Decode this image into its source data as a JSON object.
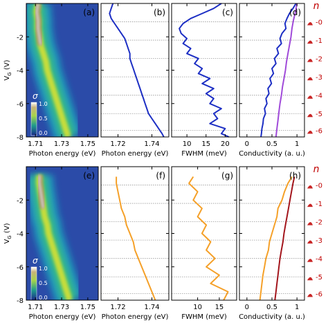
{
  "colors": {
    "blue_curve": "#1d2fc4",
    "purple_curve": "#a04ad9",
    "orange_curve": "#f5a028",
    "darkred_curve": "#a3151c",
    "n_color": "#c00000",
    "dotted_line": "#999999"
  },
  "row_ylabel": "V_G (V)",
  "yticks": [
    "-2",
    "-4",
    "-6",
    "-8"
  ],
  "n_axis_title": "n",
  "n_labels": [
    "-0",
    "-1",
    "-2",
    "-3",
    "-4",
    "-5",
    "-6"
  ],
  "colorbar": {
    "symbol": "σ",
    "ticks": [
      "1.0",
      "0.5",
      "0.0"
    ]
  },
  "chart_data": [
    {
      "type": "heatmap",
      "panel": "(a)",
      "xlabel": "Photon energy (eV)",
      "xticks": [
        1.71,
        1.73,
        1.75
      ],
      "xlim": [
        1.703,
        1.758
      ],
      "ylim": [
        -8,
        0
      ],
      "peak_ridge": {
        "vg": [
          0,
          -0.5,
          -1.0,
          -1.5,
          -2.0,
          -2.5,
          -3.0,
          -3.5,
          -4.0,
          -4.5,
          -5.0,
          -5.5,
          -6.0,
          -6.5,
          -7.0,
          -7.5,
          -8.0
        ],
        "energy": [
          1.712,
          1.711,
          1.712,
          1.712,
          1.713,
          1.714,
          1.716,
          1.718,
          1.719,
          1.721,
          1.723,
          1.725,
          1.727,
          1.729,
          1.731,
          1.733,
          1.735
        ]
      }
    },
    {
      "type": "line",
      "panel": "(b)",
      "xlabel": "Photon energy (eV)",
      "xticks": [
        1.72,
        1.74
      ],
      "xlim": [
        1.71,
        1.75
      ],
      "ylim": [
        -8,
        0
      ],
      "series": [
        {
          "color": "blue",
          "vg": [
            0,
            -0.3,
            -0.6,
            -0.9,
            -1.2,
            -1.5,
            -1.8,
            -2.1,
            -2.4,
            -2.7,
            -3.0,
            -3.3,
            -3.6,
            -3.9,
            -4.2,
            -4.5,
            -4.8,
            -5.1,
            -5.4,
            -5.7,
            -6.0,
            -6.3,
            -6.6,
            -6.9,
            -7.2,
            -7.5,
            -7.8,
            -8.0
          ],
          "x": [
            1.717,
            1.716,
            1.715,
            1.716,
            1.718,
            1.72,
            1.722,
            1.724,
            1.725,
            1.726,
            1.727,
            1.727,
            1.728,
            1.729,
            1.73,
            1.731,
            1.732,
            1.733,
            1.734,
            1.735,
            1.736,
            1.737,
            1.738,
            1.74,
            1.742,
            1.744,
            1.746,
            1.747
          ]
        }
      ]
    },
    {
      "type": "line",
      "panel": "(c)",
      "xlabel": "FWHM (meV)",
      "xticks": [
        10,
        15,
        20
      ],
      "xlim": [
        6,
        23
      ],
      "ylim": [
        -8,
        0
      ],
      "series": [
        {
          "color": "blue",
          "vg": [
            0,
            -0.3,
            -0.6,
            -0.9,
            -1.2,
            -1.5,
            -1.8,
            -2.1,
            -2.4,
            -2.7,
            -3.0,
            -3.3,
            -3.6,
            -3.9,
            -4.2,
            -4.5,
            -4.8,
            -5.1,
            -5.4,
            -5.7,
            -6.0,
            -6.3,
            -6.6,
            -6.9,
            -7.2,
            -7.5,
            -7.8,
            -8.0
          ],
          "x": [
            19,
            17,
            14,
            11,
            9,
            8,
            8.5,
            10,
            9,
            11,
            10,
            13,
            12,
            14,
            13,
            16,
            14,
            17,
            15,
            17,
            16,
            19,
            17,
            18,
            16,
            20,
            19,
            21
          ]
        }
      ]
    },
    {
      "type": "line",
      "panel": "(d)",
      "xlabel": "Conductivity (a. u.)",
      "xticks": [
        0,
        0.5,
        1
      ],
      "xlim": [
        -0.15,
        1.15
      ],
      "ylim": [
        -8,
        0
      ],
      "series": [
        {
          "color": "blue",
          "vg": [
            0,
            -0.3,
            -0.6,
            -0.9,
            -1.2,
            -1.5,
            -1.8,
            -2.1,
            -2.4,
            -2.7,
            -3.0,
            -3.3,
            -3.6,
            -3.9,
            -4.2,
            -4.5,
            -4.8,
            -5.1,
            -5.4,
            -5.7,
            -6.0,
            -6.3,
            -6.6,
            -6.9,
            -7.2,
            -7.5,
            -7.8,
            -8.0
          ],
          "x": [
            0.98,
            0.92,
            0.85,
            0.8,
            0.76,
            0.78,
            0.7,
            0.66,
            0.69,
            0.6,
            0.63,
            0.55,
            0.58,
            0.5,
            0.53,
            0.46,
            0.49,
            0.42,
            0.44,
            0.38,
            0.4,
            0.35,
            0.37,
            0.33,
            0.32,
            0.3,
            0.29,
            0.28
          ]
        },
        {
          "color": "purple",
          "vg": [
            0,
            -0.5,
            -1.0,
            -1.5,
            -2.0,
            -2.5,
            -3.0,
            -3.5,
            -4.0,
            -4.5,
            -5.0,
            -5.5,
            -6.0,
            -6.5,
            -7.0,
            -7.5,
            -8.0
          ],
          "x": [
            1.0,
            0.97,
            0.93,
            0.9,
            0.88,
            0.85,
            0.82,
            0.79,
            0.77,
            0.74,
            0.71,
            0.69,
            0.66,
            0.64,
            0.62,
            0.6,
            0.58
          ]
        }
      ]
    },
    {
      "type": "heatmap",
      "panel": "(e)",
      "xlabel": "Photon energy (eV)",
      "xticks": [
        1.71,
        1.73,
        1.75
      ],
      "xlim": [
        1.703,
        1.758
      ],
      "ylim": [
        -8,
        0
      ],
      "peak_ridge": {
        "vg": [
          -0.5,
          -1.0,
          -1.5,
          -2.0,
          -2.5,
          -3.0,
          -3.5,
          -4.0,
          -4.5,
          -5.0,
          -5.5,
          -6.0,
          -6.5,
          -7.0,
          -7.5,
          -8.0
        ],
        "energy": [
          1.713,
          1.713,
          1.714,
          1.715,
          1.716,
          1.717,
          1.719,
          1.72,
          1.722,
          1.724,
          1.726,
          1.728,
          1.73,
          1.732,
          1.734,
          1.736
        ]
      }
    },
    {
      "type": "line",
      "panel": "(f)",
      "xlabel": "Photon energy (eV)",
      "xticks": [
        1.72,
        1.74
      ],
      "xlim": [
        1.71,
        1.75
      ],
      "ylim": [
        -8,
        0
      ],
      "series": [
        {
          "color": "orange",
          "vg": [
            -0.6,
            -1.0,
            -1.5,
            -2.0,
            -2.5,
            -3.0,
            -3.5,
            -4.0,
            -4.5,
            -5.0,
            -5.5,
            -6.0,
            -6.5,
            -7.0,
            -7.5,
            -8.0
          ],
          "x": [
            1.719,
            1.719,
            1.72,
            1.721,
            1.722,
            1.724,
            1.725,
            1.727,
            1.729,
            1.73,
            1.732,
            1.734,
            1.736,
            1.738,
            1.74,
            1.742
          ]
        }
      ]
    },
    {
      "type": "line",
      "panel": "(g)",
      "xlabel": "FWHM (meV)",
      "xticks": [
        10,
        15
      ],
      "xlim": [
        4,
        19
      ],
      "ylim": [
        -8,
        0
      ],
      "series": [
        {
          "color": "orange",
          "vg": [
            -0.6,
            -1.0,
            -1.5,
            -2.0,
            -2.5,
            -3.0,
            -3.5,
            -4.0,
            -4.5,
            -5.0,
            -5.5,
            -6.0,
            -6.5,
            -7.0,
            -7.5,
            -8.0
          ],
          "x": [
            9,
            8,
            10,
            9,
            11,
            10,
            12,
            11,
            13,
            12,
            14,
            12,
            15,
            13,
            17,
            16
          ]
        }
      ]
    },
    {
      "type": "line",
      "panel": "(h)",
      "xlabel": "Conductivity (a. u.)",
      "xticks": [
        0,
        0.5,
        1
      ],
      "xlim": [
        -0.15,
        1.15
      ],
      "ylim": [
        -8,
        0
      ],
      "series": [
        {
          "color": "orange",
          "vg": [
            -0.6,
            -1.0,
            -1.5,
            -2.0,
            -2.5,
            -3.0,
            -3.5,
            -4.0,
            -4.5,
            -5.0,
            -5.5,
            -6.0,
            -6.5,
            -7.0,
            -7.5,
            -8.0
          ],
          "x": [
            0.9,
            0.82,
            0.75,
            0.7,
            0.62,
            0.6,
            0.55,
            0.5,
            0.45,
            0.43,
            0.38,
            0.35,
            0.32,
            0.3,
            0.28,
            0.26
          ]
        },
        {
          "color": "darkred",
          "vg": [
            -0.6,
            -1.0,
            -1.5,
            -2.0,
            -2.5,
            -3.0,
            -3.5,
            -4.0,
            -4.5,
            -5.0,
            -5.5,
            -6.0,
            -6.5,
            -7.0,
            -7.5,
            -8.0
          ],
          "x": [
            0.95,
            0.92,
            0.89,
            0.86,
            0.83,
            0.8,
            0.77,
            0.74,
            0.72,
            0.69,
            0.66,
            0.64,
            0.62,
            0.6,
            0.58,
            0.56
          ]
        }
      ]
    }
  ]
}
